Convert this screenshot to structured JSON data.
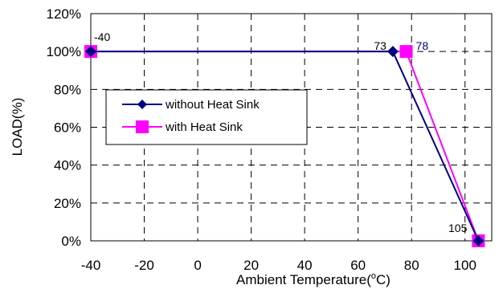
{
  "chart_data": {
    "type": "line",
    "xlabel": "Ambient Temperature(",
    "xlabel_unit_sup": "o",
    "xlabel_unit": "C)",
    "ylabel": "LOAD(%)",
    "xlim": [
      -40,
      110
    ],
    "ylim": [
      0,
      120
    ],
    "x_ticks": [
      -40,
      -20,
      0,
      20,
      40,
      60,
      80,
      100
    ],
    "y_ticks": [
      0,
      20,
      40,
      60,
      80,
      100,
      120
    ],
    "y_tick_suffix": "%",
    "grid": true,
    "legend_position": "left-middle",
    "series": [
      {
        "name": "without Heat Sink",
        "color": "#000080",
        "marker": "diamond",
        "x": [
          -40,
          73,
          105
        ],
        "y": [
          100,
          100,
          0
        ]
      },
      {
        "name": "with Heat Sink",
        "color": "#ff00ff",
        "marker": "square",
        "x": [
          -40,
          78,
          105
        ],
        "y": [
          100,
          100,
          0
        ]
      }
    ],
    "annotations": [
      {
        "text": "-40",
        "x": -40,
        "y": 100,
        "color": "#000000"
      },
      {
        "text": "73",
        "x": 73,
        "y": 100,
        "color": "#000000"
      },
      {
        "text": "78",
        "x": 78,
        "y": 100,
        "color": "#000080"
      },
      {
        "text": "105",
        "x": 105,
        "y": 0,
        "color": "#000000"
      }
    ]
  }
}
